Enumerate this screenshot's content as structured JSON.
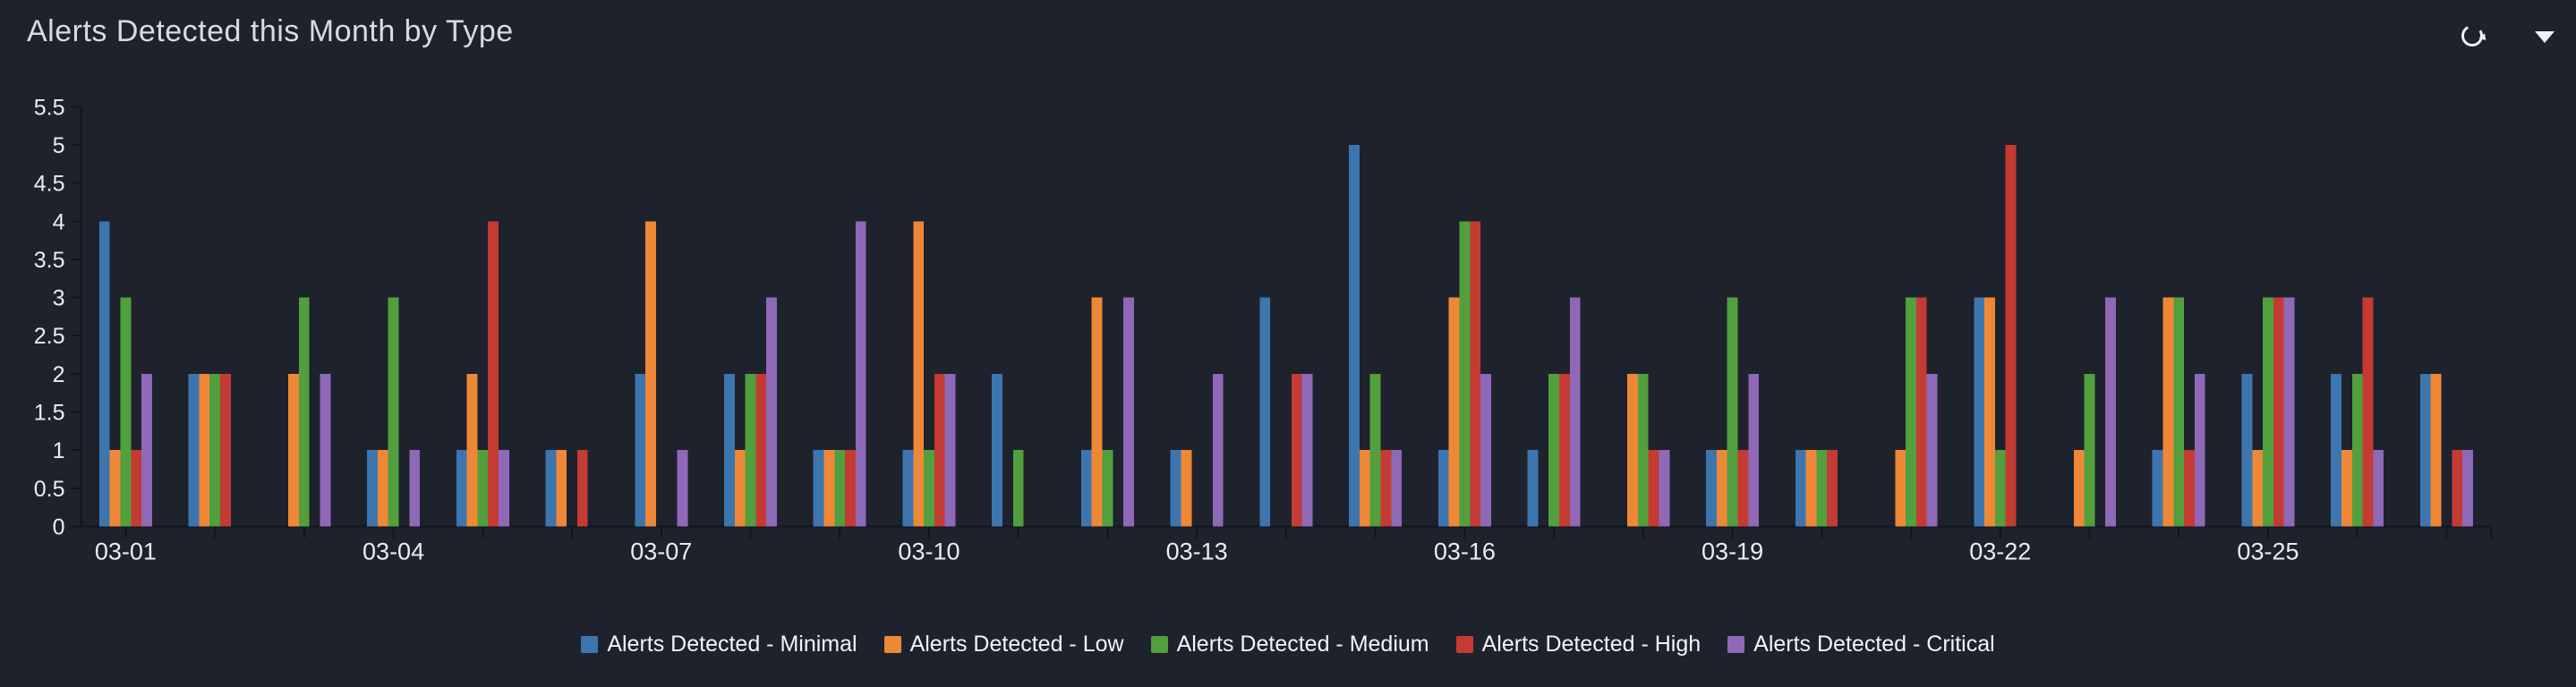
{
  "header": {
    "title": "Alerts Detected this Month by Type"
  },
  "icons": {
    "refresh": "refresh-icon",
    "caret": "caret-down-icon"
  },
  "colors": {
    "background": "#1e222d",
    "axis": "#10141d",
    "title_text": "#d6dbe4",
    "axis_text": "#e9edf3",
    "legend_text": "#f2f4f8"
  },
  "chart_data": {
    "type": "bar",
    "title": "Alerts Detected this Month by Type",
    "categories": [
      "03-01",
      "03-02",
      "03-03",
      "03-04",
      "03-05",
      "03-06",
      "03-07",
      "03-08",
      "03-09",
      "03-10",
      "03-11",
      "03-12",
      "03-13",
      "03-14",
      "03-15",
      "03-16",
      "03-17",
      "03-18",
      "03-19",
      "03-20",
      "03-21",
      "03-22",
      "03-23",
      "03-24",
      "03-25",
      "03-26",
      "03-27"
    ],
    "x_tick_labels_shown": [
      "03-01",
      "03-04",
      "03-07",
      "03-10",
      "03-13",
      "03-16",
      "03-19",
      "03-22",
      "03-25"
    ],
    "x_label_every": 3,
    "ylim": [
      0,
      5.5
    ],
    "y_tick_step": 0.5,
    "y_tick_labels": [
      "0",
      "0.5",
      "1",
      "1.5",
      "2",
      "2.5",
      "3",
      "3.5",
      "4",
      "4.5",
      "5",
      "5.5"
    ],
    "grid": false,
    "legend_position": "bottom",
    "series": [
      {
        "name": "Alerts Detected - Minimal",
        "color": "#3d76af",
        "values": [
          4,
          2,
          0,
          1,
          1,
          1,
          2,
          2,
          1,
          1,
          2,
          1,
          1,
          3,
          5,
          1,
          1,
          0,
          1,
          1,
          0,
          3,
          0,
          1,
          2,
          2,
          2
        ]
      },
      {
        "name": "Alerts Detected - Low",
        "color": "#ef8836",
        "values": [
          1,
          2,
          2,
          1,
          2,
          1,
          4,
          1,
          1,
          4,
          0,
          3,
          1,
          0,
          1,
          3,
          0,
          2,
          1,
          1,
          1,
          3,
          1,
          3,
          1,
          1,
          2
        ]
      },
      {
        "name": "Alerts Detected - Medium",
        "color": "#519f3d",
        "values": [
          3,
          2,
          3,
          3,
          1,
          0,
          0,
          2,
          1,
          1,
          1,
          1,
          0,
          0,
          2,
          4,
          2,
          2,
          3,
          1,
          3,
          1,
          2,
          3,
          3,
          2,
          0
        ]
      },
      {
        "name": "Alerts Detected - High",
        "color": "#c43b34",
        "values": [
          1,
          2,
          0,
          0,
          4,
          1,
          0,
          2,
          1,
          2,
          0,
          0,
          0,
          2,
          1,
          4,
          2,
          1,
          1,
          1,
          3,
          5,
          0,
          1,
          3,
          3,
          1
        ]
      },
      {
        "name": "Alerts Detected - Critical",
        "color": "#8f68b8",
        "values": [
          2,
          0,
          2,
          1,
          1,
          0,
          1,
          3,
          4,
          2,
          0,
          3,
          2,
          2,
          1,
          2,
          3,
          1,
          2,
          0,
          2,
          0,
          3,
          2,
          3,
          1,
          1
        ]
      }
    ]
  }
}
